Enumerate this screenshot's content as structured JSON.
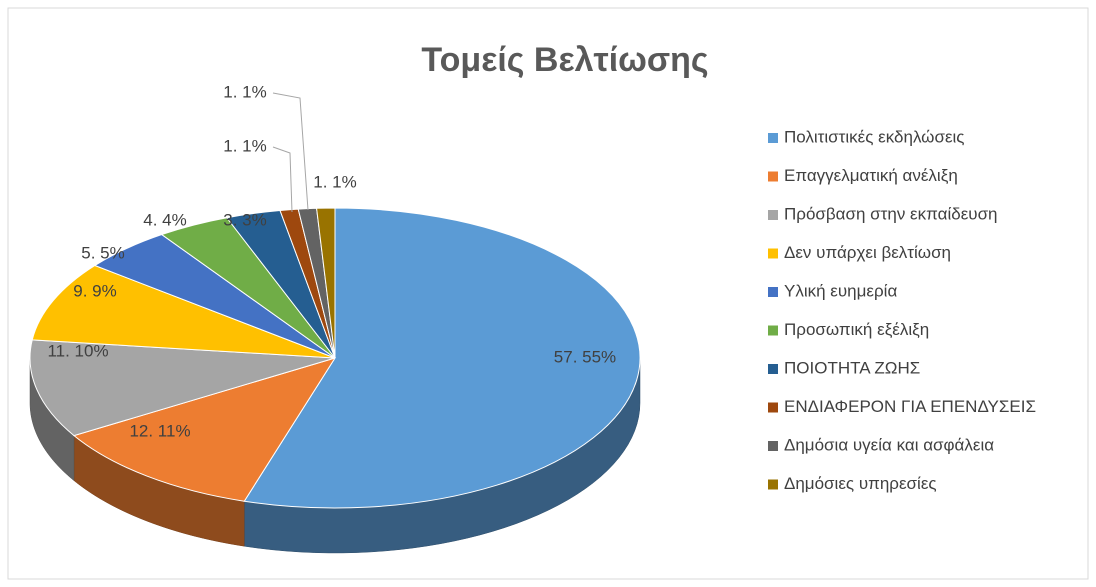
{
  "chart_data": {
    "type": "pie",
    "title": "Τομείς Βελτίωσης",
    "categories": [
      "Πολιτιστικές εκδηλώσεις",
      "Επαγγελματική ανέλιξη",
      "Πρόσβαση στην εκπαίδευση",
      "Δεν υπάρχει βελτίωση",
      "Υλική ευημερία",
      "Προσωπική εξέλιξη",
      "ΠΟΙΟΤΗΤΑ ΖΩΗΣ",
      "ΕΝΔΙΑΦΕΡΟΝ ΓΙΑ ΕΠΕΝΔΥΣΕΙΣ",
      "Δημόσια υγεία και ασφάλεια",
      "Δημόσιες υπηρεσίες"
    ],
    "values": [
      57,
      12,
      11,
      9,
      5,
      4,
      3,
      1,
      1,
      1
    ],
    "value_labels": [
      "57. 55%",
      "12. 11%",
      "11. 10%",
      "9. 9%",
      "5. 5%",
      "4. 4%",
      "3. 3%",
      "1. 1%",
      "1. 1%",
      "1. 1%"
    ],
    "colors": [
      "#5b9bd5",
      "#ed7d31",
      "#a5a5a5",
      "#ffc000",
      "#4472c4",
      "#70ad47",
      "#255e91",
      "#9e480e",
      "#636363",
      "#997300"
    ],
    "legend": "right"
  }
}
